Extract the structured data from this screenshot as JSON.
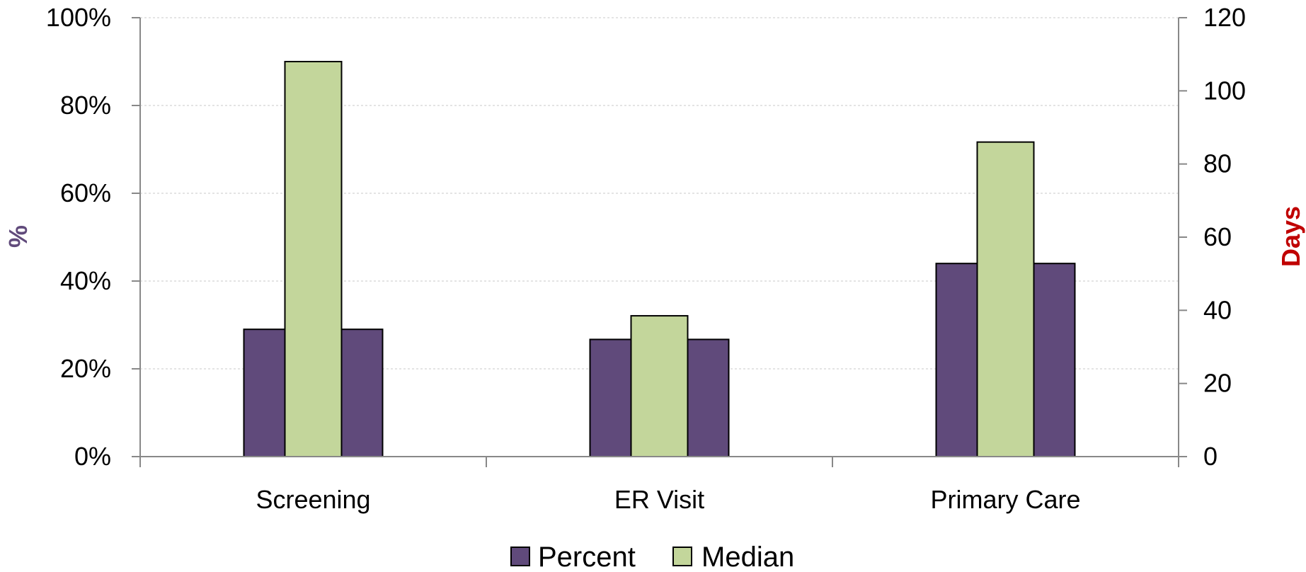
{
  "chart_data": {
    "type": "bar",
    "categories": [
      "Screening",
      "ER Visit",
      "Primary Care"
    ],
    "series": [
      {
        "name": "Percent",
        "axis": "left",
        "values": [
          29,
          26.7,
          44
        ],
        "color": "#604a7b"
      },
      {
        "name": "Median",
        "axis": "right",
        "values": [
          108,
          38.5,
          86
        ],
        "color": "#c3d69b"
      }
    ],
    "ylabel": "%",
    "ylabel_color": "#604a7b",
    "y2label": "Days",
    "y2label_color": "#c00000",
    "ylim": [
      0,
      100
    ],
    "y2lim": [
      0,
      120
    ],
    "yticks": [
      "0%",
      "20%",
      "40%",
      "60%",
      "80%",
      "100%"
    ],
    "y2ticks": [
      "0",
      "20",
      "40",
      "60",
      "80",
      "100",
      "120"
    ],
    "grid": true,
    "legend_position": "bottom"
  }
}
